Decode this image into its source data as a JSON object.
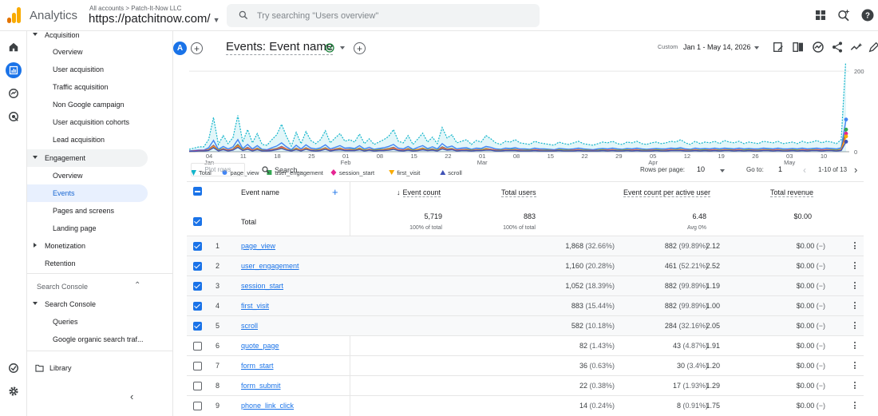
{
  "header": {
    "app_name": "Analytics",
    "breadcrumb": "All accounts > Patch-It-Now LLC",
    "property": "https://patchitnow.com/",
    "search_placeholder": "Try searching \"Users overview\"",
    "icons": [
      "apps-icon",
      "search-insights-icon",
      "help-icon"
    ]
  },
  "rail": {
    "icons": [
      "home-icon",
      "reports-icon",
      "explore-icon",
      "advertising-icon",
      "admin-check-icon",
      "settings-icon"
    ]
  },
  "nav": {
    "acquisition": "Acquisition",
    "acq_items": [
      "Overview",
      "User acquisition",
      "Traffic acquisition",
      "Non Google campaign",
      "User acquisition cohorts",
      "Lead acquisition"
    ],
    "engagement": "Engagement",
    "eng_items": [
      "Overview",
      "Events",
      "Pages and screens",
      "Landing page"
    ],
    "monetization": "Monetization",
    "retention": "Retention",
    "search_console_section": "Search Console",
    "search_console": "Search Console",
    "sc_items": [
      "Queries",
      "Google organic search traf..."
    ],
    "library": "Library"
  },
  "toolbar": {
    "segment_letter": "A",
    "title": "Events: Event name",
    "custom_label": "Custom",
    "date_range": "Jan 1 - May 14, 2026"
  },
  "chart_data": {
    "type": "line",
    "x_ticks": [
      {
        "day": "04",
        "month": "Jan"
      },
      {
        "day": "11",
        "month": ""
      },
      {
        "day": "18",
        "month": ""
      },
      {
        "day": "25",
        "month": ""
      },
      {
        "day": "01",
        "month": "Feb"
      },
      {
        "day": "08",
        "month": ""
      },
      {
        "day": "15",
        "month": ""
      },
      {
        "day": "22",
        "month": ""
      },
      {
        "day": "01",
        "month": "Mar"
      },
      {
        "day": "08",
        "month": ""
      },
      {
        "day": "15",
        "month": ""
      },
      {
        "day": "22",
        "month": ""
      },
      {
        "day": "29",
        "month": ""
      },
      {
        "day": "05",
        "month": "Apr"
      },
      {
        "day": "12",
        "month": ""
      },
      {
        "day": "19",
        "month": ""
      },
      {
        "day": "26",
        "month": ""
      },
      {
        "day": "03",
        "month": "May"
      },
      {
        "day": "10",
        "month": ""
      }
    ],
    "y_ticks": [
      200,
      0
    ],
    "ylim": [
      0,
      220
    ],
    "series": [
      {
        "name": "Total",
        "color": "#12b5cb",
        "values": [
          6,
          9,
          12,
          12,
          30,
          85,
          18,
          40,
          20,
          35,
          90,
          24,
          55,
          22,
          45,
          18,
          16,
          30,
          42,
          68,
          38,
          14,
          48,
          20,
          50,
          28,
          20,
          30,
          52,
          22,
          34,
          45,
          26,
          30,
          24,
          44,
          20,
          32,
          18,
          24,
          30,
          38,
          55,
          26,
          22,
          40,
          18,
          32,
          46,
          24,
          36,
          20,
          60,
          34,
          42,
          22,
          26,
          30,
          18,
          28,
          24,
          40,
          32,
          22,
          18,
          26,
          24,
          30,
          22,
          20,
          18,
          26,
          22,
          20,
          18,
          16,
          24,
          20,
          18,
          22,
          26,
          20,
          18,
          16,
          20,
          24,
          22,
          26,
          20,
          18,
          24,
          22,
          26,
          20,
          18,
          22,
          24,
          20,
          22,
          26,
          24,
          30,
          22,
          18,
          26,
          20,
          24,
          22,
          26,
          20,
          28,
          24,
          22,
          26,
          20,
          24,
          22,
          20,
          26,
          24,
          22,
          26,
          20,
          22,
          24,
          20,
          26,
          22,
          24,
          28,
          22,
          26,
          24,
          20,
          30,
          240
        ]
      },
      {
        "name": "page_view",
        "color": "#4285f4",
        "values": [
          2,
          3,
          4,
          4,
          10,
          28,
          6,
          13,
          7,
          12,
          30,
          8,
          18,
          7,
          15,
          6,
          5,
          10,
          14,
          22,
          12,
          5,
          16,
          7,
          17,
          9,
          7,
          10,
          17,
          7,
          11,
          15,
          9,
          10,
          8,
          15,
          7,
          11,
          6,
          8,
          10,
          13,
          18,
          9,
          7,
          13,
          6,
          11,
          15,
          8,
          12,
          7,
          20,
          11,
          14,
          7,
          9,
          10,
          6,
          9,
          8,
          13,
          11,
          7,
          6,
          9,
          8,
          10,
          7,
          7,
          6,
          9,
          7,
          7,
          6,
          5,
          8,
          7,
          6,
          7,
          9,
          7,
          6,
          5,
          7,
          8,
          7,
          9,
          7,
          6,
          8,
          7,
          9,
          7,
          6,
          7,
          8,
          7,
          7,
          9,
          8,
          10,
          7,
          6,
          9,
          7,
          8,
          7,
          9,
          7,
          9,
          8,
          7,
          9,
          7,
          8,
          7,
          7,
          9,
          8,
          7,
          9,
          7,
          7,
          8,
          7,
          9,
          7,
          8,
          9,
          7,
          9,
          8,
          7,
          10,
          80
        ]
      },
      {
        "name": "user_engagement",
        "color": "#34a853",
        "values": [
          1,
          2,
          3,
          3,
          6,
          16,
          4,
          8,
          4,
          7,
          18,
          5,
          11,
          4,
          9,
          4,
          3,
          6,
          8,
          13,
          7,
          3,
          9,
          4,
          10,
          5,
          4,
          6,
          10,
          4,
          7,
          9,
          5,
          6,
          5,
          9,
          4,
          6,
          4,
          5,
          6,
          8,
          11,
          5,
          4,
          8,
          4,
          6,
          9,
          5,
          7,
          4,
          12,
          7,
          8,
          4,
          5,
          6,
          4,
          5,
          5,
          8,
          6,
          4,
          4,
          5,
          5,
          6,
          4,
          4,
          4,
          5,
          4,
          4,
          4,
          3,
          5,
          4,
          4,
          4,
          5,
          4,
          4,
          3,
          4,
          5,
          4,
          5,
          4,
          4,
          5,
          4,
          5,
          4,
          4,
          4,
          5,
          4,
          4,
          5,
          5,
          6,
          4,
          4,
          5,
          4,
          5,
          4,
          5,
          4,
          5,
          5,
          4,
          5,
          4,
          5,
          4,
          4,
          5,
          5,
          4,
          5,
          4,
          4,
          5,
          4,
          5,
          4,
          5,
          5,
          4,
          5,
          5,
          4,
          6,
          55
        ]
      },
      {
        "name": "session_start",
        "color": "#e52592",
        "values": [
          1,
          2,
          3,
          3,
          5,
          15,
          3,
          7,
          4,
          6,
          16,
          4,
          10,
          4,
          8,
          3,
          3,
          5,
          7,
          12,
          7,
          2,
          8,
          4,
          9,
          5,
          3,
          5,
          9,
          4,
          6,
          8,
          5,
          5,
          4,
          8,
          3,
          6,
          3,
          4,
          5,
          7,
          10,
          5,
          4,
          7,
          3,
          6,
          8,
          4,
          6,
          3,
          11,
          6,
          7,
          4,
          5,
          5,
          3,
          5,
          4,
          7,
          6,
          4,
          3,
          5,
          4,
          5,
          4,
          3,
          3,
          5,
          4,
          3,
          3,
          3,
          4,
          3,
          3,
          4,
          5,
          3,
          3,
          3,
          3,
          4,
          4,
          5,
          3,
          3,
          4,
          4,
          5,
          3,
          3,
          4,
          4,
          3,
          4,
          5,
          4,
          5,
          4,
          3,
          5,
          3,
          4,
          4,
          5,
          3,
          5,
          4,
          4,
          5,
          3,
          4,
          4,
          3,
          5,
          4,
          4,
          5,
          3,
          4,
          4,
          3,
          5,
          4,
          4,
          5,
          4,
          5,
          4,
          3,
          5,
          45
        ]
      },
      {
        "name": "first_visit",
        "color": "#f9ab00",
        "values": [
          1,
          1,
          2,
          2,
          4,
          13,
          3,
          6,
          3,
          5,
          14,
          4,
          8,
          3,
          7,
          3,
          2,
          4,
          6,
          10,
          6,
          2,
          7,
          3,
          8,
          4,
          3,
          4,
          8,
          3,
          5,
          7,
          4,
          4,
          4,
          7,
          3,
          5,
          3,
          4,
          4,
          6,
          8,
          4,
          3,
          6,
          3,
          5,
          7,
          4,
          5,
          3,
          9,
          5,
          6,
          3,
          4,
          4,
          3,
          4,
          4,
          6,
          5,
          3,
          3,
          4,
          4,
          4,
          3,
          3,
          3,
          4,
          3,
          3,
          3,
          2,
          4,
          3,
          3,
          3,
          4,
          3,
          3,
          2,
          3,
          4,
          3,
          4,
          3,
          3,
          4,
          3,
          4,
          3,
          3,
          3,
          4,
          3,
          3,
          4,
          4,
          4,
          3,
          3,
          4,
          3,
          4,
          3,
          4,
          3,
          4,
          4,
          3,
          4,
          3,
          4,
          3,
          3,
          4,
          4,
          3,
          4,
          3,
          3,
          4,
          3,
          4,
          3,
          4,
          4,
          3,
          4,
          4,
          3,
          4,
          38
        ]
      },
      {
        "name": "scroll",
        "color": "#3f51b5",
        "values": [
          1,
          1,
          2,
          2,
          3,
          10,
          2,
          5,
          2,
          4,
          11,
          3,
          6,
          2,
          5,
          2,
          2,
          3,
          5,
          8,
          4,
          2,
          5,
          2,
          6,
          3,
          2,
          3,
          6,
          2,
          4,
          5,
          3,
          3,
          3,
          5,
          2,
          4,
          2,
          3,
          3,
          4,
          6,
          3,
          2,
          4,
          2,
          3,
          5,
          3,
          4,
          2,
          7,
          4,
          5,
          2,
          3,
          3,
          2,
          3,
          3,
          4,
          4,
          2,
          2,
          3,
          3,
          3,
          2,
          2,
          2,
          3,
          2,
          2,
          2,
          2,
          3,
          2,
          2,
          2,
          3,
          2,
          2,
          2,
          2,
          3,
          2,
          3,
          2,
          2,
          3,
          2,
          3,
          2,
          2,
          2,
          3,
          2,
          2,
          3,
          3,
          3,
          2,
          2,
          3,
          2,
          3,
          2,
          3,
          2,
          3,
          3,
          2,
          3,
          2,
          3,
          2,
          2,
          3,
          3,
          2,
          3,
          2,
          2,
          3,
          2,
          3,
          2,
          3,
          3,
          2,
          3,
          3,
          2,
          3,
          25
        ]
      }
    ]
  },
  "table_bar": {
    "plot_rows": "Plot rows",
    "search_placeholder": "Search...",
    "rows_per_page_label": "Rows per page:",
    "rows_per_page": "10",
    "goto_label": "Go to:",
    "goto_value": "1",
    "pager": "1-10 of 13"
  },
  "table": {
    "headers": {
      "event_name": "Event name",
      "event_count": "Event count",
      "total_users": "Total users",
      "per_user": "Event count per active user",
      "revenue": "Total revenue"
    },
    "total": {
      "label": "Total",
      "event_count": "5,719",
      "event_count_sub": "100% of total",
      "total_users": "883",
      "total_users_sub": "100% of total",
      "per_user": "6.48",
      "per_user_sub": "Avg 0%",
      "revenue": "$0.00"
    },
    "rows": [
      {
        "n": "1",
        "name": "page_view",
        "count": "1,868",
        "count_pct": "(32.66%)",
        "users": "882",
        "users_pct": "(99.89%)",
        "per": "2.12",
        "rev": "$0.00",
        "rev_delta": "(−)",
        "checked": true
      },
      {
        "n": "2",
        "name": "user_engagement",
        "count": "1,160",
        "count_pct": "(20.28%)",
        "users": "461",
        "users_pct": "(52.21%)",
        "per": "2.52",
        "rev": "$0.00",
        "rev_delta": "(−)",
        "checked": true
      },
      {
        "n": "3",
        "name": "session_start",
        "count": "1,052",
        "count_pct": "(18.39%)",
        "users": "882",
        "users_pct": "(99.89%)",
        "per": "1.19",
        "rev": "$0.00",
        "rev_delta": "(−)",
        "checked": true
      },
      {
        "n": "4",
        "name": "first_visit",
        "count": "883",
        "count_pct": "(15.44%)",
        "users": "882",
        "users_pct": "(99.89%)",
        "per": "1.00",
        "rev": "$0.00",
        "rev_delta": "(−)",
        "checked": true
      },
      {
        "n": "5",
        "name": "scroll",
        "count": "582",
        "count_pct": "(10.18%)",
        "users": "284",
        "users_pct": "(32.16%)",
        "per": "2.05",
        "rev": "$0.00",
        "rev_delta": "(−)",
        "checked": true
      },
      {
        "n": "6",
        "name": "quote_page",
        "count": "82",
        "count_pct": "(1.43%)",
        "users": "43",
        "users_pct": "(4.87%)",
        "per": "1.91",
        "rev": "$0.00",
        "rev_delta": "(−)",
        "checked": false
      },
      {
        "n": "7",
        "name": "form_start",
        "count": "36",
        "count_pct": "(0.63%)",
        "users": "30",
        "users_pct": "(3.4%)",
        "per": "1.20",
        "rev": "$0.00",
        "rev_delta": "(−)",
        "checked": false
      },
      {
        "n": "8",
        "name": "form_submit",
        "count": "22",
        "count_pct": "(0.38%)",
        "users": "17",
        "users_pct": "(1.93%)",
        "per": "1.29",
        "rev": "$0.00",
        "rev_delta": "(−)",
        "checked": false
      },
      {
        "n": "9",
        "name": "phone_link_click",
        "count": "14",
        "count_pct": "(0.24%)",
        "users": "8",
        "users_pct": "(0.91%)",
        "per": "1.75",
        "rev": "$0.00",
        "rev_delta": "(−)",
        "checked": false
      }
    ]
  }
}
